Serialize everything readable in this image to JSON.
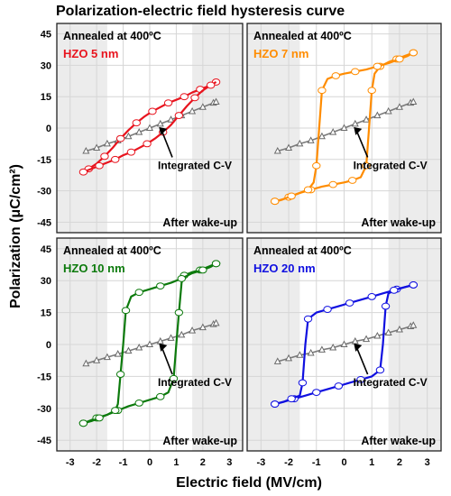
{
  "figure": {
    "title": "Polarization-electric field hysteresis curve",
    "ylabel": "Polarization (μC/cm²)",
    "xlabel": "Electric field (MV/cm)",
    "x_ticks": [
      "-3",
      "-2",
      "-1",
      "0",
      "1",
      "2",
      "3"
    ],
    "y_ticks": [
      "45",
      "30",
      "15",
      "0",
      "-15",
      "-30",
      "-45"
    ]
  },
  "chart_data": [
    {
      "type": "line",
      "anneal_label": "Annealed at 400ºC",
      "sample_label": "HZO 5 nm",
      "cv_label": "Integrated C-V",
      "wake_label": "After wake-up",
      "color": "#e8141e",
      "xlim": [
        -3.5,
        3.5
      ],
      "ylim": [
        -50,
        50
      ],
      "shaded_x": [
        [
          -3.5,
          -1.6
        ],
        [
          1.6,
          3.5
        ]
      ],
      "pe_loop": {
        "upper_branch": [
          [
            2.5,
            22
          ],
          [
            2.2,
            20
          ],
          [
            1.9,
            18.5
          ],
          [
            1.6,
            17
          ],
          [
            1.3,
            15
          ],
          [
            1.0,
            13.5
          ],
          [
            0.7,
            12
          ],
          [
            0.4,
            10
          ],
          [
            0.1,
            8
          ],
          [
            -0.2,
            5.5
          ],
          [
            -0.5,
            2.5
          ],
          [
            -0.8,
            -1
          ],
          [
            -1.1,
            -5
          ],
          [
            -1.4,
            -9.5
          ],
          [
            -1.7,
            -13.5
          ],
          [
            -2.0,
            -17
          ],
          [
            -2.3,
            -19.5
          ],
          [
            -2.5,
            -21
          ]
        ],
        "lower_branch": [
          [
            -2.5,
            -21
          ],
          [
            -2.2,
            -19.5
          ],
          [
            -1.9,
            -18
          ],
          [
            -1.6,
            -16.5
          ],
          [
            -1.3,
            -15
          ],
          [
            -1.0,
            -13
          ],
          [
            -0.7,
            -11.5
          ],
          [
            -0.4,
            -9.5
          ],
          [
            -0.1,
            -7.5
          ],
          [
            0.2,
            -5
          ],
          [
            0.5,
            -2
          ],
          [
            0.8,
            1.5
          ],
          [
            1.1,
            6
          ],
          [
            1.4,
            10.5
          ],
          [
            1.7,
            14.5
          ],
          [
            2.0,
            18
          ],
          [
            2.3,
            20.5
          ],
          [
            2.5,
            22
          ]
        ]
      },
      "cv_line": [
        [
          -2.4,
          -11
        ],
        [
          -2.0,
          -9.5
        ],
        [
          -1.6,
          -7.5
        ],
        [
          -1.2,
          -6
        ],
        [
          -0.8,
          -4
        ],
        [
          -0.4,
          -2
        ],
        [
          0,
          0
        ],
        [
          0.4,
          2
        ],
        [
          0.8,
          4
        ],
        [
          1.2,
          6
        ],
        [
          1.6,
          8
        ],
        [
          2.0,
          10
        ],
        [
          2.4,
          12
        ],
        [
          2.5,
          12.5
        ]
      ]
    },
    {
      "type": "line",
      "anneal_label": "Annealed at 400ºC",
      "sample_label": "HZO 7 nm",
      "cv_label": "Integrated C-V",
      "wake_label": "After wake-up",
      "color": "#ff8c00",
      "xlim": [
        -3.5,
        3.5
      ],
      "ylim": [
        -50,
        50
      ],
      "shaded_x": [
        [
          -3.5,
          -1.6
        ],
        [
          1.6,
          3.5
        ]
      ],
      "pe_loop": {
        "upper_branch": [
          [
            2.5,
            36
          ],
          [
            2.2,
            34.5
          ],
          [
            1.9,
            33
          ],
          [
            1.6,
            31.5
          ],
          [
            1.3,
            29.5
          ],
          [
            1.1,
            26
          ],
          [
            1.0,
            18
          ],
          [
            0.9,
            0
          ],
          [
            0.8,
            -18
          ],
          [
            0.6,
            -23.5
          ],
          [
            0.3,
            -25
          ],
          [
            0.0,
            -26
          ],
          [
            -0.4,
            -27
          ],
          [
            -0.8,
            -28
          ],
          [
            -1.2,
            -29.5
          ],
          [
            -1.6,
            -31
          ],
          [
            -2.0,
            -33
          ],
          [
            -2.3,
            -34.5
          ],
          [
            -2.5,
            -35
          ]
        ],
        "lower_branch": [
          [
            -2.5,
            -35
          ],
          [
            -2.2,
            -34
          ],
          [
            -1.9,
            -32.5
          ],
          [
            -1.6,
            -31
          ],
          [
            -1.3,
            -29.5
          ],
          [
            -1.1,
            -26
          ],
          [
            -1.0,
            -18
          ],
          [
            -0.9,
            0
          ],
          [
            -0.8,
            18
          ],
          [
            -0.6,
            23.5
          ],
          [
            -0.3,
            25
          ],
          [
            0.0,
            26
          ],
          [
            0.4,
            27
          ],
          [
            0.8,
            28
          ],
          [
            1.2,
            29.5
          ],
          [
            1.6,
            31
          ],
          [
            2.0,
            33
          ],
          [
            2.3,
            34.5
          ],
          [
            2.5,
            36
          ]
        ]
      },
      "cv_line": [
        [
          -2.4,
          -11
        ],
        [
          -2.0,
          -9.5
        ],
        [
          -1.6,
          -7.5
        ],
        [
          -1.2,
          -6
        ],
        [
          -0.8,
          -4
        ],
        [
          -0.4,
          -2
        ],
        [
          0,
          0
        ],
        [
          0.4,
          2
        ],
        [
          0.8,
          4
        ],
        [
          1.2,
          6
        ],
        [
          1.6,
          8
        ],
        [
          2.0,
          10
        ],
        [
          2.4,
          12
        ],
        [
          2.5,
          12.5
        ]
      ]
    },
    {
      "type": "line",
      "anneal_label": "Annealed at 400ºC",
      "sample_label": "HZO 10 nm",
      "cv_label": "Integrated C-V",
      "wake_label": "After wake-up",
      "color": "#0c7a0c",
      "xlim": [
        -3.5,
        3.5
      ],
      "ylim": [
        -50,
        50
      ],
      "shaded_x": [
        [
          -3.5,
          -1.6
        ],
        [
          1.6,
          3.5
        ]
      ],
      "pe_loop": {
        "upper_branch": [
          [
            2.5,
            38
          ],
          [
            2.2,
            36.5
          ],
          [
            1.9,
            35
          ],
          [
            1.6,
            34
          ],
          [
            1.3,
            32.5
          ],
          [
            1.2,
            29
          ],
          [
            1.1,
            15
          ],
          [
            1.0,
            0
          ],
          [
            0.9,
            -16
          ],
          [
            0.7,
            -22.5
          ],
          [
            0.4,
            -24.5
          ],
          [
            0.0,
            -26
          ],
          [
            -0.4,
            -27.5
          ],
          [
            -0.8,
            -29
          ],
          [
            -1.2,
            -31
          ],
          [
            -1.6,
            -33
          ],
          [
            -2.0,
            -34.5
          ],
          [
            -2.3,
            -36
          ],
          [
            -2.5,
            -37
          ]
        ],
        "lower_branch": [
          [
            -2.5,
            -37
          ],
          [
            -2.2,
            -36
          ],
          [
            -1.9,
            -34.5
          ],
          [
            -1.6,
            -33
          ],
          [
            -1.3,
            -31
          ],
          [
            -1.2,
            -28
          ],
          [
            -1.1,
            -14
          ],
          [
            -1.0,
            0
          ],
          [
            -0.9,
            16
          ],
          [
            -0.7,
            22.5
          ],
          [
            -0.4,
            24.5
          ],
          [
            0.0,
            26
          ],
          [
            0.4,
            27.5
          ],
          [
            0.8,
            29
          ],
          [
            1.2,
            31
          ],
          [
            1.6,
            33.5
          ],
          [
            2.0,
            35
          ],
          [
            2.3,
            36.5
          ],
          [
            2.5,
            38
          ]
        ]
      },
      "cv_line": [
        [
          -2.4,
          -9
        ],
        [
          -2.0,
          -7.5
        ],
        [
          -1.6,
          -6
        ],
        [
          -1.2,
          -4.5
        ],
        [
          -0.8,
          -3
        ],
        [
          -0.4,
          -1.5
        ],
        [
          0,
          0
        ],
        [
          0.4,
          1.5
        ],
        [
          0.8,
          3
        ],
        [
          1.2,
          4.5
        ],
        [
          1.6,
          6.5
        ],
        [
          2.0,
          8
        ],
        [
          2.4,
          9.5
        ],
        [
          2.5,
          10
        ]
      ]
    },
    {
      "type": "line",
      "anneal_label": "Annealed at 400ºC",
      "sample_label": "HZO 20 nm",
      "cv_label": "Integrated C-V",
      "wake_label": "After wake-up",
      "color": "#1010e0",
      "xlim": [
        -3.5,
        3.5
      ],
      "ylim": [
        -50,
        50
      ],
      "shaded_x": [
        [
          -3.5,
          -1.6
        ],
        [
          1.6,
          3.5
        ]
      ],
      "pe_loop": {
        "upper_branch": [
          [
            2.5,
            28
          ],
          [
            2.2,
            27
          ],
          [
            1.9,
            26
          ],
          [
            1.6,
            24
          ],
          [
            1.5,
            18
          ],
          [
            1.4,
            0
          ],
          [
            1.3,
            -12
          ],
          [
            1.0,
            -15
          ],
          [
            0.6,
            -16.5
          ],
          [
            0.2,
            -18
          ],
          [
            -0.2,
            -19.5
          ],
          [
            -0.6,
            -21
          ],
          [
            -1.0,
            -22.5
          ],
          [
            -1.4,
            -24
          ],
          [
            -1.8,
            -25.5
          ],
          [
            -2.2,
            -27
          ],
          [
            -2.5,
            -28
          ]
        ],
        "lower_branch": [
          [
            -2.5,
            -28
          ],
          [
            -2.2,
            -27
          ],
          [
            -1.9,
            -25.5
          ],
          [
            -1.6,
            -24
          ],
          [
            -1.5,
            -18
          ],
          [
            -1.4,
            0
          ],
          [
            -1.3,
            12
          ],
          [
            -1.0,
            15
          ],
          [
            -0.6,
            16.5
          ],
          [
            -0.2,
            18
          ],
          [
            0.2,
            19.5
          ],
          [
            0.6,
            21
          ],
          [
            1.0,
            22.5
          ],
          [
            1.4,
            24
          ],
          [
            1.8,
            25.5
          ],
          [
            2.2,
            27
          ],
          [
            2.5,
            28
          ]
        ]
      },
      "cv_line": [
        [
          -2.4,
          -8
        ],
        [
          -2.0,
          -6.5
        ],
        [
          -1.6,
          -5
        ],
        [
          -1.2,
          -4
        ],
        [
          -0.8,
          -2.5
        ],
        [
          -0.4,
          -1.5
        ],
        [
          0,
          0
        ],
        [
          0.4,
          1.5
        ],
        [
          0.8,
          2.5
        ],
        [
          1.2,
          4
        ],
        [
          1.6,
          5.5
        ],
        [
          2.0,
          7
        ],
        [
          2.4,
          8.5
        ],
        [
          2.5,
          9
        ]
      ]
    }
  ]
}
